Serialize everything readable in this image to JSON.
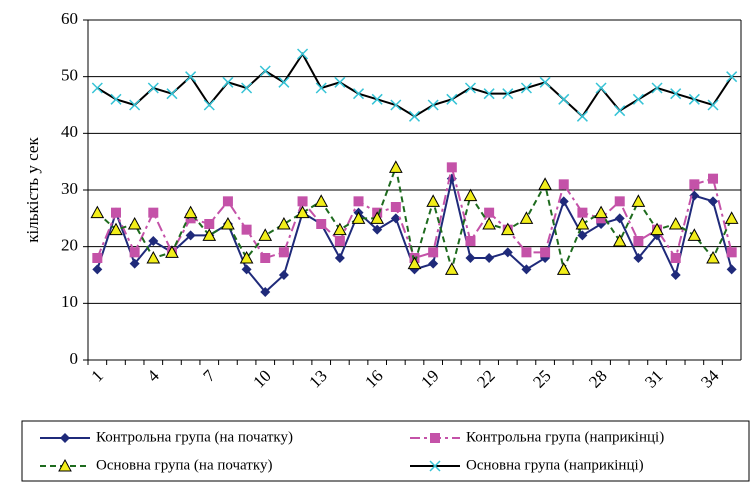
{
  "chart_data": {
    "type": "line",
    "ylabel": "кількість у сек",
    "categories": [
      "1",
      null,
      null,
      "4",
      null,
      null,
      "7",
      null,
      null,
      "10",
      null,
      null,
      "13",
      null,
      null,
      "16",
      null,
      null,
      "19",
      null,
      null,
      "22",
      null,
      null,
      "25",
      null,
      null,
      "28",
      null,
      null,
      "31",
      null,
      null,
      "34",
      null
    ],
    "ylim": [
      0,
      60
    ],
    "yticks": [
      0,
      10,
      20,
      30,
      40,
      50,
      60
    ],
    "grid": true,
    "legend": "bottom",
    "series": [
      {
        "name": "Контрольна група (на початку)",
        "color": "#1f2a7a",
        "marker": "diamond",
        "dash": "solid",
        "values": [
          16,
          26,
          17,
          21,
          19,
          22,
          22,
          24,
          16,
          12,
          15,
          26,
          24,
          18,
          26,
          23,
          25,
          16,
          17,
          32,
          18,
          18,
          19,
          16,
          18,
          28,
          22,
          24,
          25,
          18,
          22,
          15,
          29,
          28,
          16
        ]
      },
      {
        "name": "Контрольна група (наприкінці)",
        "color": "#c452a8",
        "marker": "square",
        "dash": "dashdot",
        "values": [
          18,
          26,
          19,
          26,
          19,
          25,
          24,
          28,
          23,
          18,
          19,
          28,
          24,
          21,
          28,
          26,
          27,
          18,
          19,
          34,
          21,
          26,
          23,
          19,
          19,
          31,
          26,
          25,
          28,
          21,
          23,
          18,
          31,
          32,
          19
        ]
      },
      {
        "name": "Основна група (на початку)",
        "color": "#1e6b1e",
        "marker": "triangle",
        "dash": "dashed",
        "values": [
          26,
          23,
          24,
          18,
          19,
          26,
          22,
          24,
          18,
          22,
          24,
          26,
          28,
          23,
          25,
          25,
          34,
          17,
          28,
          16,
          29,
          24,
          23,
          25,
          31,
          16,
          24,
          26,
          21,
          28,
          23,
          24,
          22,
          18,
          25
        ]
      },
      {
        "name": "Основна група (наприкінці)",
        "color": "#000000",
        "marker": "cross",
        "dash": "solid",
        "values": [
          48,
          46,
          45,
          48,
          47,
          50,
          45,
          49,
          48,
          51,
          49,
          54,
          48,
          49,
          47,
          46,
          45,
          43,
          45,
          46,
          48,
          47,
          47,
          48,
          49,
          46,
          43,
          48,
          44,
          46,
          48,
          47,
          46,
          45,
          50
        ]
      }
    ]
  }
}
